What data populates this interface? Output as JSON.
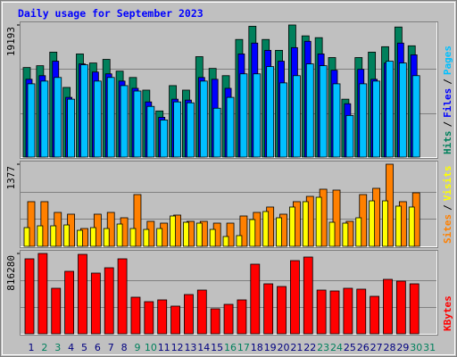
{
  "chart_data": [
    {
      "type": "bar",
      "title": "Daily usage for September 2023",
      "ylim": [
        0,
        19193
      ],
      "yticks": [
        19193
      ],
      "legend_separator": "/",
      "series": [
        {
          "name": "Hits",
          "color": "#00805c",
          "values": [
            13015,
            13277,
            15249,
            10122,
            14986,
            13672,
            14198,
            12489,
            11568,
            9728,
            6704,
            10385,
            9728,
            14592,
            12883,
            11831,
            17090,
            19010,
            17090,
            15512,
            19193,
            17615,
            17353,
            14461,
            8413,
            14461,
            15249,
            16038,
            18900,
            16170,
            null
          ]
        },
        {
          "name": "Files",
          "color": "#0000ff",
          "values": [
            11306,
            11831,
            13935,
            8676,
            13540,
            12357,
            12094,
            11043,
            9991,
            8019,
            5784,
            8413,
            8282,
            11568,
            11306,
            9991,
            14986,
            16564,
            15512,
            13935,
            15907,
            16827,
            14986,
            12620,
            7756,
            12752,
            11306,
            13672,
            16564,
            14855,
            null
          ]
        },
        {
          "name": "Pages",
          "color": "#00c0ff",
          "values": [
            10648,
            11043,
            11568,
            8413,
            13409,
            11043,
            11568,
            10385,
            9597,
            7362,
            5390,
            8019,
            7888,
            11043,
            7099,
            8676,
            12094,
            12094,
            13146,
            10780,
            11831,
            13540,
            13277,
            10648,
            6047,
            10648,
            11043,
            13935,
            13672,
            11831,
            null
          ]
        }
      ]
    },
    {
      "type": "bar",
      "ylim": [
        0,
        1377
      ],
      "yticks": [
        1377
      ],
      "legend_separator": "/",
      "series": [
        {
          "name": "Sites",
          "color": "#ff8000",
          "values": [
            749,
            749,
            569,
            539,
            299,
            539,
            569,
            479,
            868,
            419,
            389,
            524,
            419,
            419,
            389,
            389,
            509,
            569,
            659,
            539,
            749,
            838,
            958,
            943,
            419,
            868,
            973,
            1377,
            749,
            898,
            null
          ]
        },
        {
          "name": "Visits",
          "color": "#ffff00",
          "values": [
            314,
            344,
            344,
            359,
            269,
            314,
            299,
            374,
            299,
            284,
            299,
            509,
            404,
            389,
            284,
            165,
            180,
            449,
            584,
            479,
            659,
            749,
            823,
            404,
            389,
            479,
            763,
            763,
            674,
            659,
            null
          ]
        }
      ]
    },
    {
      "type": "bar",
      "ylim": [
        0,
        816280
      ],
      "yticks": [
        816280
      ],
      "categories": [
        "1",
        "2",
        "3",
        "4",
        "5",
        "6",
        "7",
        "8",
        "9",
        "10",
        "11",
        "12",
        "13",
        "14",
        "15",
        "16",
        "17",
        "18",
        "19",
        "20",
        "21",
        "22",
        "23",
        "24",
        "25",
        "26",
        "27",
        "28",
        "29",
        "30",
        "31"
      ],
      "label_colors": [
        "#000080",
        "#00805c",
        "#00805c",
        "#000080",
        "#000080",
        "#000080",
        "#000080",
        "#000080",
        "#00805c",
        "#00805c",
        "#000080",
        "#000080",
        "#000080",
        "#000080",
        "#000080",
        "#00805c",
        "#00805c",
        "#000080",
        "#000080",
        "#000080",
        "#000080",
        "#000080",
        "#00805c",
        "#00805c",
        "#000080",
        "#000080",
        "#000080",
        "#000080",
        "#000080",
        "#00805c",
        "#00805c"
      ],
      "series": [
        {
          "name": "KBytes",
          "color": "#ff0000",
          "values": [
            761880,
            816280,
            462570,
            634900,
            807230,
            616760,
            671180,
            761880,
            371870,
            326520,
            344660,
            281170,
            399080,
            444430,
            253960,
            299310,
            344660,
            707460,
            507920,
            480710,
            743740,
            780020,
            444430,
            435360,
            462570,
            453500,
            380940,
            553270,
            535130,
            507920,
            null
          ]
        }
      ]
    }
  ]
}
